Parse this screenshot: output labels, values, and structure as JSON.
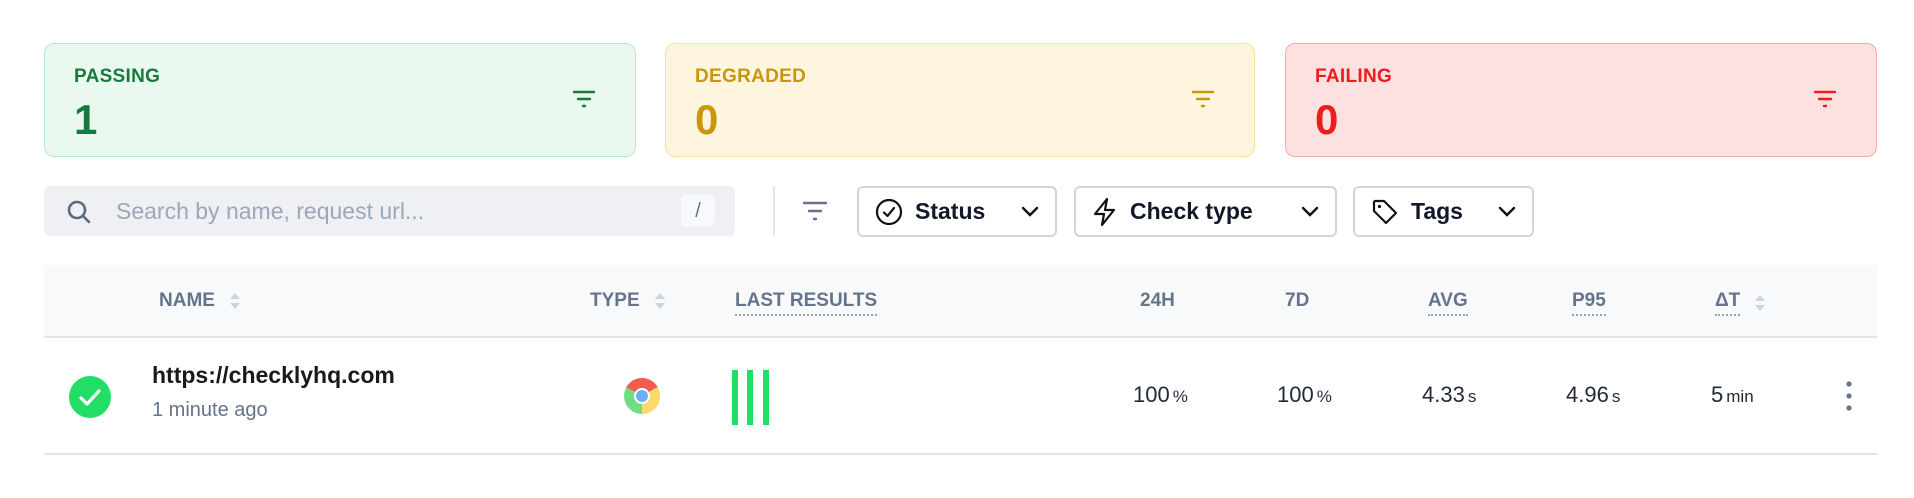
{
  "summary": {
    "passing": {
      "label": "PASSING",
      "count": "1",
      "color": "#177a3c"
    },
    "degraded": {
      "label": "DEGRADED",
      "count": "0",
      "color": "#c9960c"
    },
    "failing": {
      "label": "FAILING",
      "count": "0",
      "color": "#ee1c1c"
    }
  },
  "toolbar": {
    "search_placeholder": "Search by name, request url...",
    "search_shortcut": "/",
    "filters": [
      {
        "label": "Status",
        "icon": "check-circle-icon"
      },
      {
        "label": "Check type",
        "icon": "lightning-icon"
      },
      {
        "label": "Tags",
        "icon": "tag-icon"
      }
    ]
  },
  "table": {
    "columns": [
      "NAME",
      "TYPE",
      "LAST RESULTS",
      "24H",
      "7D",
      "AVG",
      "P95",
      "ΔT"
    ],
    "rows": [
      {
        "status": "passing",
        "name": "https://checklyhq.com",
        "updated": "1 minute ago",
        "type_icon": "chrome-icon",
        "last_results": [
          "pass",
          "pass",
          "pass"
        ],
        "h24": "100",
        "h24_unit": "%",
        "d7": "100",
        "d7_unit": "%",
        "avg": "4.33",
        "avg_unit": "s",
        "p95": "4.96",
        "p95_unit": "s",
        "dt": "5",
        "dt_unit": "min"
      }
    ]
  }
}
